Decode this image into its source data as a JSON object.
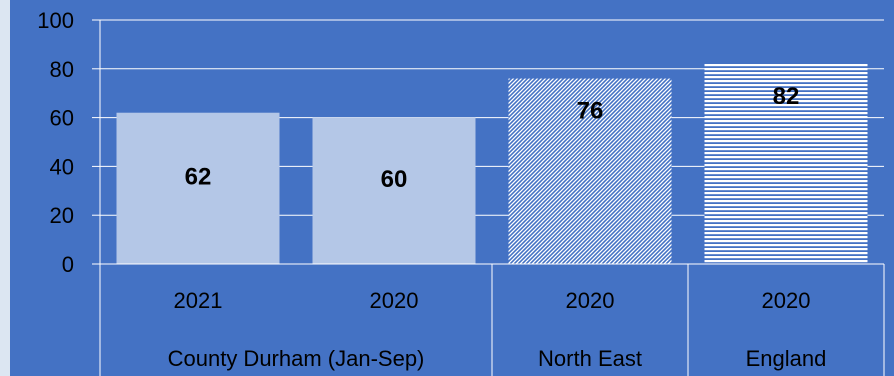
{
  "chart_data": {
    "type": "bar",
    "title": "",
    "xlabel": "",
    "ylabel": "",
    "ylim": [
      0,
      100
    ],
    "yticks": [
      0,
      20,
      40,
      60,
      80,
      100
    ],
    "grid": true,
    "bars": [
      {
        "year": "2021",
        "value": 62,
        "label": "62",
        "group": "County Durham (Jan-Sep)",
        "fill": "solid"
      },
      {
        "year": "2020",
        "value": 60,
        "label": "60",
        "group": "County Durham (Jan-Sep)",
        "fill": "solid"
      },
      {
        "year": "2020",
        "value": 76,
        "label": "76",
        "group": "North East",
        "fill": "diagonal-hatch"
      },
      {
        "year": "2020",
        "value": 82,
        "label": "82",
        "group": "England",
        "fill": "horizontal-lines"
      }
    ],
    "groups": [
      {
        "name": "County Durham (Jan-Sep)",
        "bar_count": 2
      },
      {
        "name": "North East",
        "bar_count": 1
      },
      {
        "name": "England",
        "bar_count": 1
      }
    ],
    "colors": {
      "background": "#4472c4",
      "solid_bar": "#b4c7e7",
      "pattern_fg": "#ffffff",
      "pattern_bg": "#4472c4",
      "text": "#000000",
      "grid": "#ffffff",
      "left_strip": "#dce6f2"
    }
  }
}
